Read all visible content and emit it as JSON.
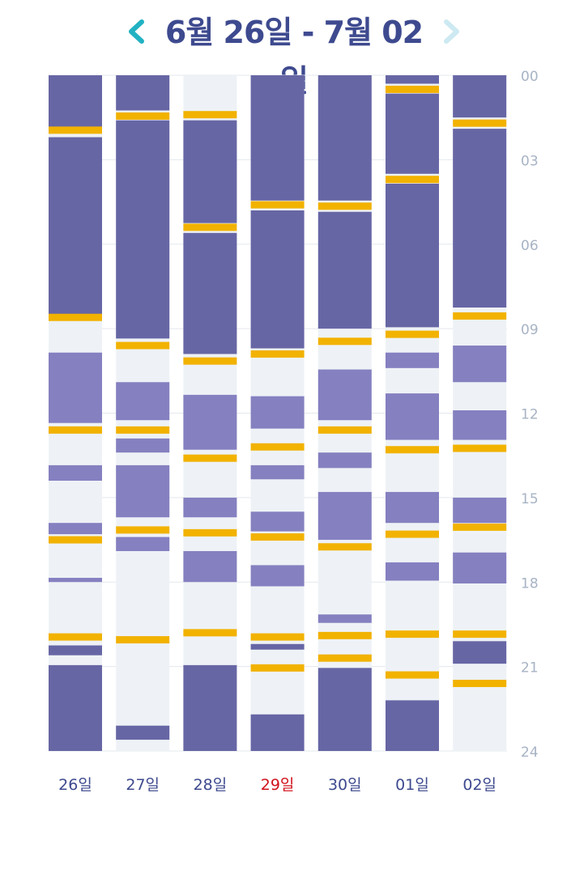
{
  "header": {
    "title": "6월 26일 - 7월 02일",
    "prev_icon": "chevron-left-icon",
    "next_icon": "chevron-right-icon"
  },
  "colors": {
    "accent": "#22b2c3",
    "accent_disabled": "#cde9f1",
    "title": "#3e4a8f",
    "day_label": "#3e4a8f",
    "today_label": "#d0121b",
    "axis_label": "#a7b3c4",
    "sleep": "#6766a5",
    "nap": "#8580c0",
    "awake": "#eef2f6",
    "feed": "#f2b200",
    "gridline": "#e3e8ee"
  },
  "chart_data": {
    "type": "timeline",
    "title": "6월 26일 - 7월 02일",
    "y_axis": {
      "range": [
        0,
        24
      ],
      "unit": "hour",
      "ticks": [
        "00",
        "03",
        "06",
        "09",
        "12",
        "15",
        "18",
        "21",
        "24"
      ]
    },
    "legend": [
      "sleep",
      "nap",
      "awake",
      "feed"
    ],
    "days": [
      {
        "label": "26일",
        "today": false,
        "segments": [
          {
            "type": "sleep",
            "start": 0,
            "end": 1.85
          },
          {
            "type": "sleep",
            "start": 2.2,
            "end": 8.5
          },
          {
            "type": "nap",
            "start": 9.85,
            "end": 12.35
          },
          {
            "type": "nap",
            "start": 13.85,
            "end": 14.4
          },
          {
            "type": "nap",
            "start": 15.9,
            "end": 16.3
          },
          {
            "type": "nap",
            "start": 17.85,
            "end": 18.0
          },
          {
            "type": "sleep",
            "start": 20.25,
            "end": 20.6
          },
          {
            "type": "sleep",
            "start": 20.95,
            "end": 24
          }
        ],
        "feeds": [
          1.95,
          8.6,
          12.6,
          16.5,
          19.95
        ]
      },
      {
        "label": "27일",
        "today": false,
        "segments": [
          {
            "type": "sleep",
            "start": 0,
            "end": 1.25
          },
          {
            "type": "sleep",
            "start": 1.6,
            "end": 9.35
          },
          {
            "type": "nap",
            "start": 10.9,
            "end": 12.25
          },
          {
            "type": "nap",
            "start": 12.9,
            "end": 13.4
          },
          {
            "type": "nap",
            "start": 13.85,
            "end": 15.7
          },
          {
            "type": "nap",
            "start": 16.4,
            "end": 16.9
          },
          {
            "type": "sleep",
            "start": 23.1,
            "end": 23.6
          }
        ],
        "feeds": [
          1.45,
          9.6,
          12.6,
          16.15,
          20.05
        ]
      },
      {
        "label": "28일",
        "today": false,
        "segments": [
          {
            "type": "sleep",
            "start": 1.6,
            "end": 5.25
          },
          {
            "type": "sleep",
            "start": 5.6,
            "end": 9.9
          },
          {
            "type": "nap",
            "start": 11.35,
            "end": 13.3
          },
          {
            "type": "nap",
            "start": 15.0,
            "end": 15.7
          },
          {
            "type": "nap",
            "start": 16.9,
            "end": 18.0
          },
          {
            "type": "sleep",
            "start": 20.95,
            "end": 24
          }
        ],
        "feeds": [
          1.4,
          5.4,
          10.15,
          13.6,
          16.25,
          19.8
        ]
      },
      {
        "label": "29일",
        "today": true,
        "segments": [
          {
            "type": "sleep",
            "start": 0,
            "end": 4.45
          },
          {
            "type": "sleep",
            "start": 4.8,
            "end": 9.7
          },
          {
            "type": "nap",
            "start": 11.4,
            "end": 12.55
          },
          {
            "type": "nap",
            "start": 13.85,
            "end": 14.35
          },
          {
            "type": "nap",
            "start": 15.5,
            "end": 16.2
          },
          {
            "type": "nap",
            "start": 17.4,
            "end": 18.15
          },
          {
            "type": "sleep",
            "start": 20.2,
            "end": 20.4
          },
          {
            "type": "sleep",
            "start": 22.7,
            "end": 24
          }
        ],
        "feeds": [
          4.6,
          9.9,
          13.2,
          16.4,
          19.95,
          21.05
        ]
      },
      {
        "label": "30일",
        "today": false,
        "segments": [
          {
            "type": "sleep",
            "start": 0,
            "end": 4.45
          },
          {
            "type": "sleep",
            "start": 4.85,
            "end": 9.0
          },
          {
            "type": "nap",
            "start": 10.45,
            "end": 12.25
          },
          {
            "type": "nap",
            "start": 13.4,
            "end": 13.95
          },
          {
            "type": "nap",
            "start": 14.8,
            "end": 16.5
          },
          {
            "type": "nap",
            "start": 19.15,
            "end": 19.45
          },
          {
            "type": "sleep",
            "start": 21.05,
            "end": 24
          }
        ],
        "feeds": [
          4.65,
          9.45,
          12.6,
          16.75,
          19.9,
          20.7
        ]
      },
      {
        "label": "01일",
        "today": false,
        "segments": [
          {
            "type": "sleep",
            "start": 0,
            "end": 0.3
          },
          {
            "type": "sleep",
            "start": 0.65,
            "end": 3.5
          },
          {
            "type": "sleep",
            "start": 3.85,
            "end": 8.95
          },
          {
            "type": "nap",
            "start": 9.85,
            "end": 10.4
          },
          {
            "type": "nap",
            "start": 11.3,
            "end": 12.95
          },
          {
            "type": "nap",
            "start": 14.8,
            "end": 15.9
          },
          {
            "type": "nap",
            "start": 17.3,
            "end": 17.95
          },
          {
            "type": "sleep",
            "start": 22.2,
            "end": 24
          }
        ],
        "feeds": [
          0.5,
          3.7,
          9.2,
          13.3,
          16.3,
          19.85,
          21.3
        ]
      },
      {
        "label": "02일",
        "today": false,
        "segments": [
          {
            "type": "sleep",
            "start": 0,
            "end": 1.5
          },
          {
            "type": "sleep",
            "start": 1.9,
            "end": 8.25
          },
          {
            "type": "nap",
            "start": 9.6,
            "end": 10.9
          },
          {
            "type": "nap",
            "start": 11.9,
            "end": 12.95
          },
          {
            "type": "nap",
            "start": 15.0,
            "end": 15.9
          },
          {
            "type": "nap",
            "start": 16.95,
            "end": 18.05
          },
          {
            "type": "sleep",
            "start": 20.1,
            "end": 20.9
          }
        ],
        "feeds": [
          1.7,
          8.55,
          13.25,
          16.05,
          19.85,
          21.6
        ]
      }
    ]
  }
}
